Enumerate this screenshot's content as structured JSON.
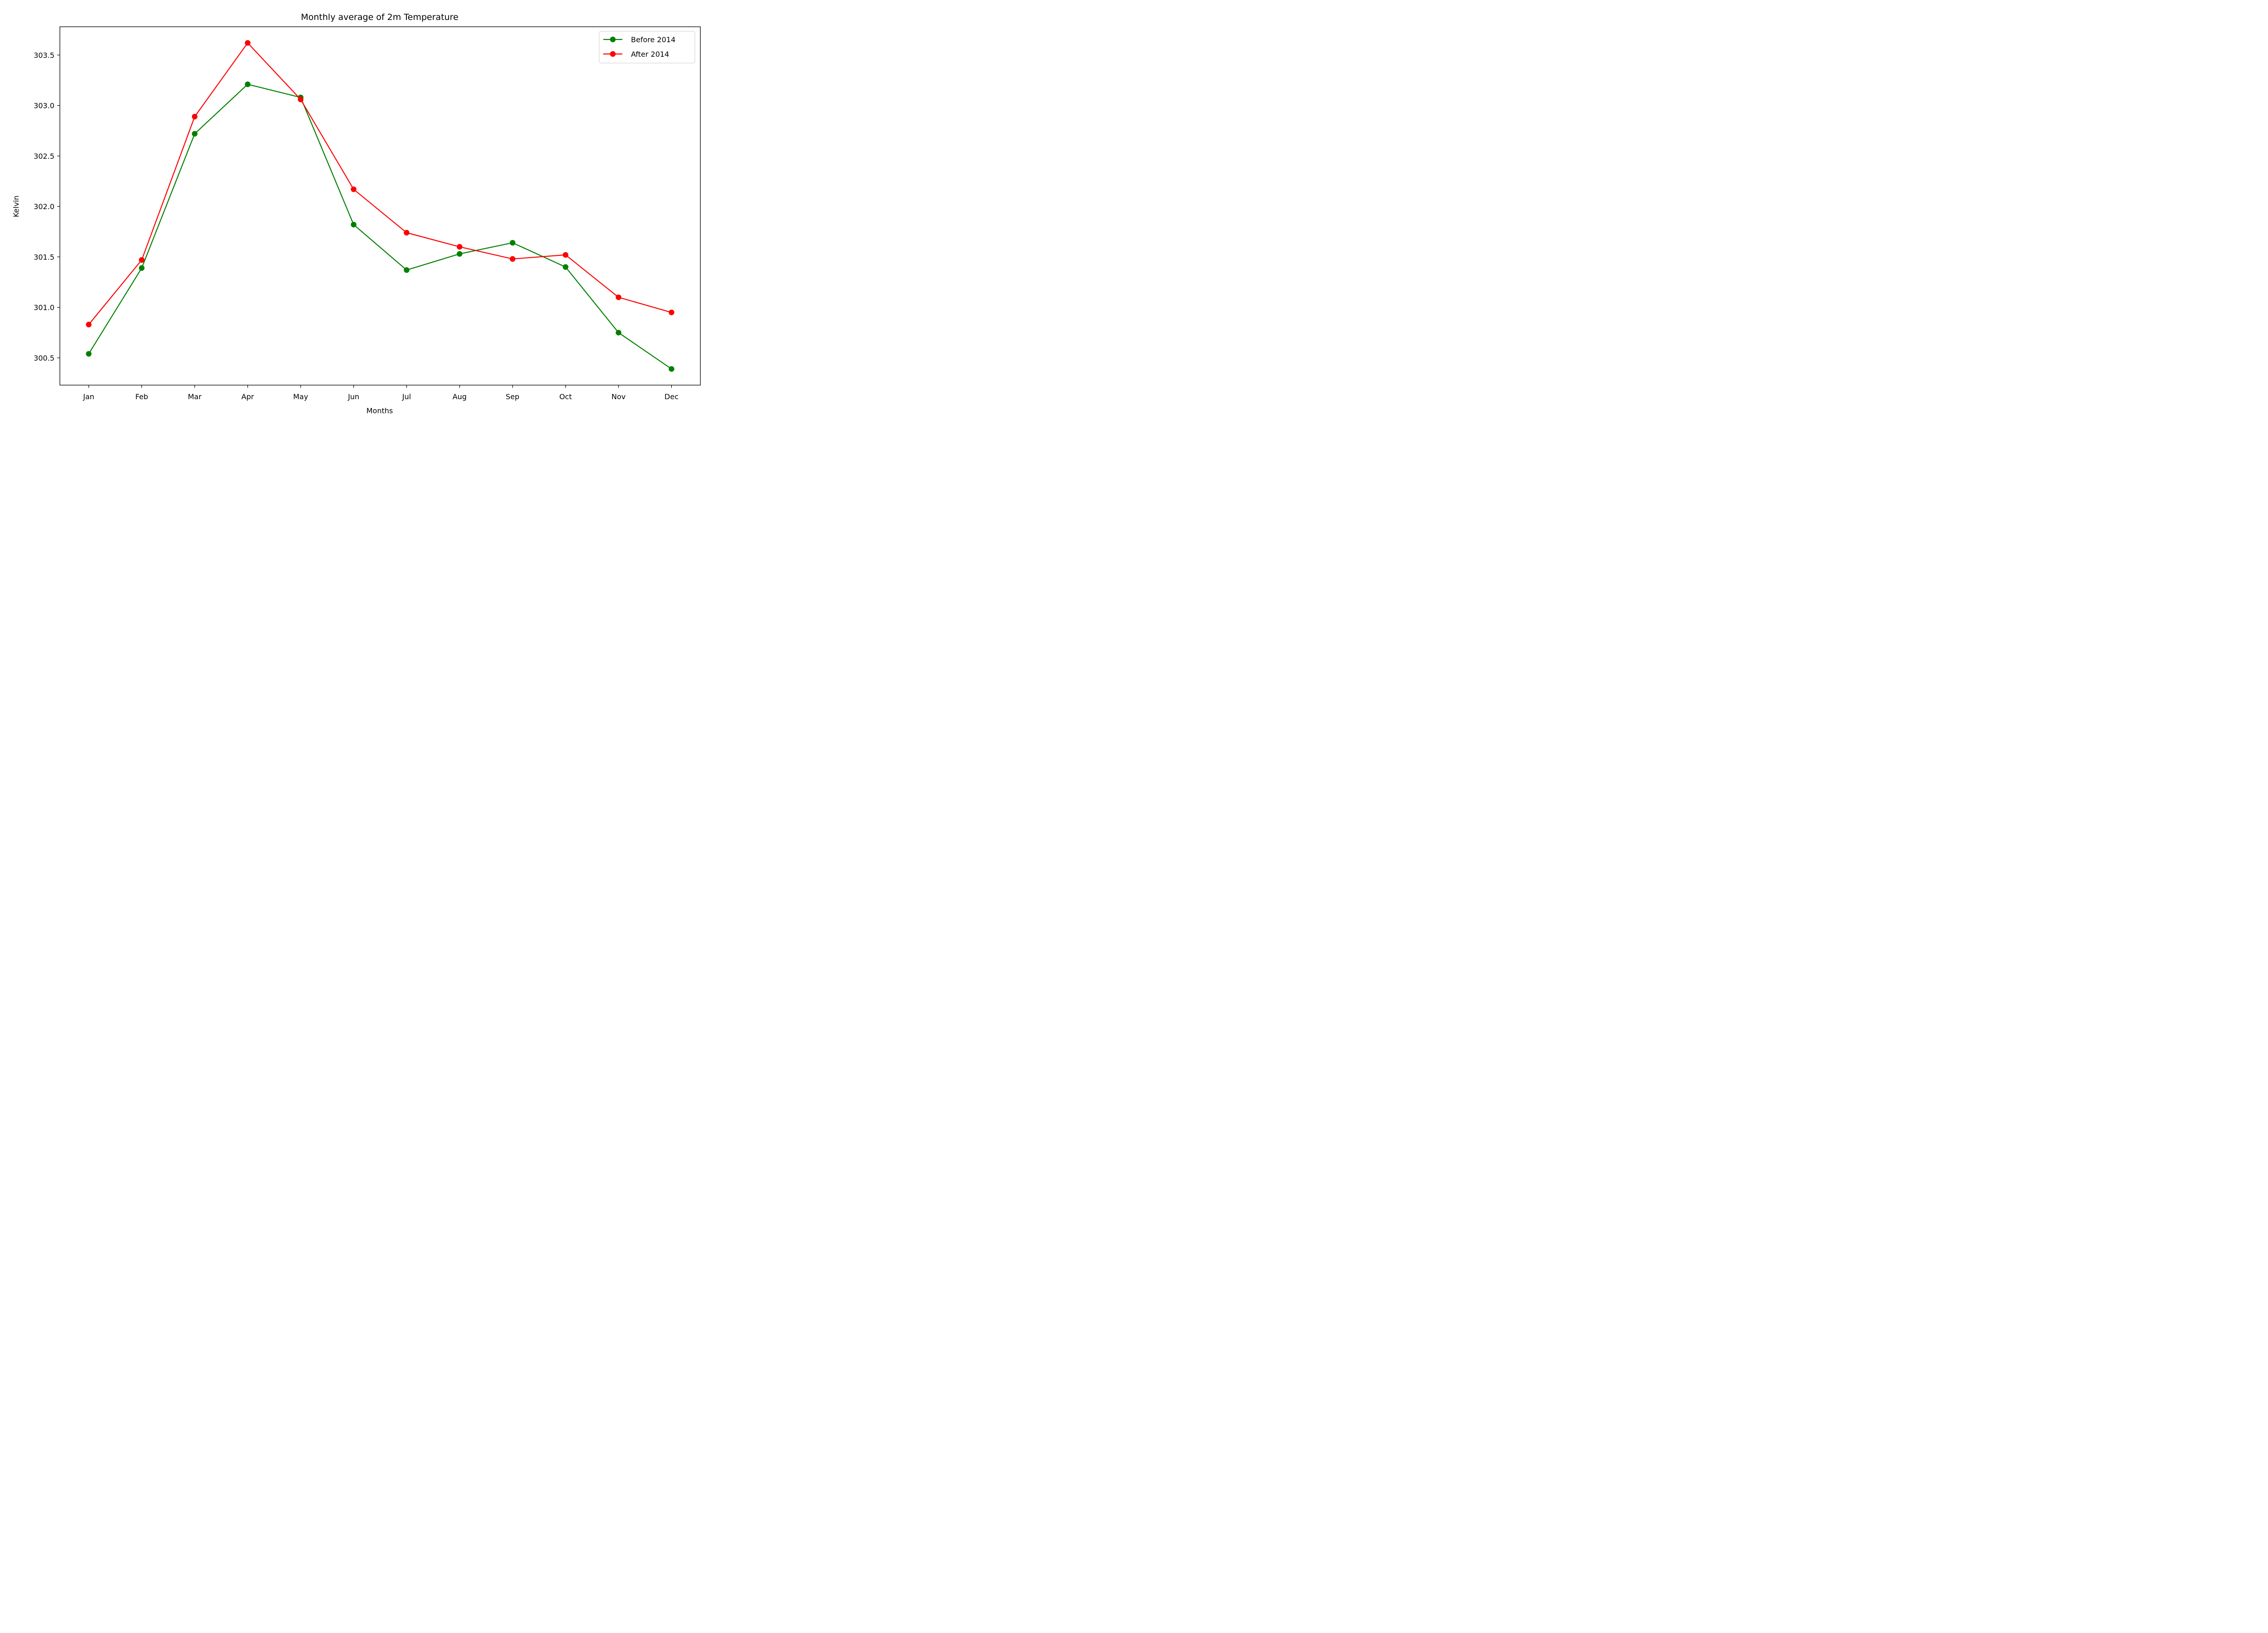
{
  "chart_data": {
    "type": "line",
    "title": "Monthly average of 2m Temperature",
    "xlabel": "Months",
    "ylabel": "Kelvin",
    "categories": [
      "Jan",
      "Feb",
      "Mar",
      "Apr",
      "May",
      "Jun",
      "Jul",
      "Aug",
      "Sep",
      "Oct",
      "Nov",
      "Dec"
    ],
    "yticks": [
      "300.5",
      "301.0",
      "301.5",
      "302.0",
      "302.5",
      "303.0",
      "303.5"
    ],
    "ylim": [
      300.23,
      303.78
    ],
    "grid": false,
    "legend_position": "top-right",
    "series": [
      {
        "name": "Before 2014",
        "color": "#008000",
        "values": [
          300.54,
          301.39,
          302.72,
          303.21,
          303.08,
          301.82,
          301.37,
          301.53,
          301.64,
          301.4,
          300.75,
          300.39
        ]
      },
      {
        "name": "After 2014",
        "color": "#ff0000",
        "values": [
          300.83,
          301.47,
          302.89,
          303.62,
          303.06,
          302.17,
          301.74,
          301.6,
          301.48,
          301.52,
          301.1,
          300.95
        ]
      }
    ]
  }
}
